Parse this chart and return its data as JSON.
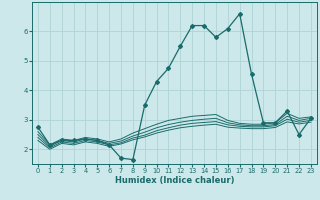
{
  "xlabel": "Humidex (Indice chaleur)",
  "ylabel": "",
  "x_ticks": [
    0,
    1,
    2,
    3,
    4,
    5,
    6,
    7,
    8,
    9,
    10,
    11,
    12,
    13,
    14,
    15,
    16,
    17,
    18,
    19,
    20,
    21,
    22,
    23
  ],
  "xlim": [
    -0.5,
    23.5
  ],
  "ylim": [
    1.5,
    7.0
  ],
  "y_ticks": [
    2,
    3,
    4,
    5,
    6
  ],
  "background_color": "#cde8ea",
  "grid_color": "#afd4d6",
  "line_color": "#1a6b6b",
  "curves": [
    [
      2.75,
      2.15,
      2.3,
      2.3,
      2.35,
      2.3,
      2.15,
      1.7,
      1.65,
      3.5,
      4.3,
      4.75,
      5.5,
      6.2,
      6.2,
      5.8,
      6.1,
      6.6,
      4.55,
      2.9,
      2.9,
      3.3,
      2.5,
      3.05
    ],
    [
      2.6,
      2.15,
      2.35,
      2.3,
      2.4,
      2.35,
      2.25,
      2.35,
      2.55,
      2.7,
      2.85,
      2.98,
      3.05,
      3.12,
      3.15,
      3.18,
      2.98,
      2.88,
      2.85,
      2.85,
      2.9,
      3.22,
      3.05,
      3.1
    ],
    [
      2.5,
      2.1,
      2.3,
      2.25,
      2.35,
      2.3,
      2.2,
      2.28,
      2.45,
      2.58,
      2.73,
      2.84,
      2.92,
      2.98,
      3.02,
      3.05,
      2.9,
      2.83,
      2.8,
      2.8,
      2.84,
      3.12,
      2.98,
      3.05
    ],
    [
      2.4,
      2.05,
      2.25,
      2.2,
      2.3,
      2.25,
      2.15,
      2.22,
      2.38,
      2.48,
      2.63,
      2.73,
      2.82,
      2.88,
      2.91,
      2.94,
      2.83,
      2.78,
      2.76,
      2.76,
      2.8,
      3.02,
      2.92,
      2.98
    ],
    [
      2.3,
      2.0,
      2.2,
      2.15,
      2.25,
      2.2,
      2.1,
      2.18,
      2.32,
      2.42,
      2.55,
      2.65,
      2.73,
      2.78,
      2.82,
      2.85,
      2.75,
      2.72,
      2.7,
      2.7,
      2.74,
      2.93,
      2.86,
      2.92
    ]
  ]
}
